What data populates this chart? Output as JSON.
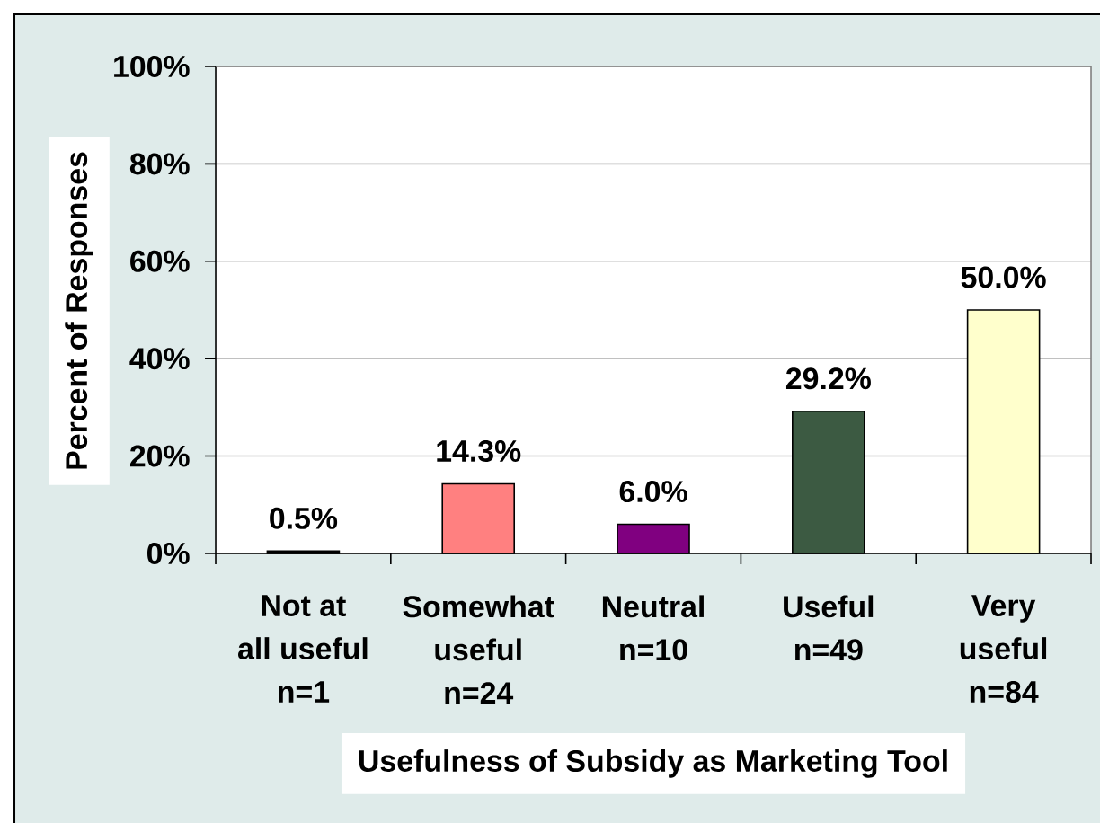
{
  "chart_data": {
    "type": "bar",
    "categories": [
      "Not at all useful n=1",
      "Somewhat useful n=24",
      "Neutral n=10",
      "Useful n=49",
      "Very useful n=84"
    ],
    "values": [
      0.5,
      14.3,
      6.0,
      29.2,
      50.0
    ],
    "colors": [
      "#000000",
      "#ff8080",
      "#800080",
      "#3c5a42",
      "#ffffcc"
    ],
    "value_labels": [
      "0.5%",
      "14.3%",
      "6.0%",
      "29.2%",
      "50.0%"
    ],
    "xlabel": "Usefulness of Subsidy as Marketing Tool",
    "ylabel": "Percent of Responses",
    "ylim": [
      0,
      100
    ],
    "yticks": [
      {
        "value": 0,
        "label": "0%"
      },
      {
        "value": 20,
        "label": "20%"
      },
      {
        "value": 40,
        "label": "40%"
      },
      {
        "value": 60,
        "label": "60%"
      },
      {
        "value": 80,
        "label": "80%"
      },
      {
        "value": 100,
        "label": "100%"
      }
    ],
    "grid": "y"
  }
}
